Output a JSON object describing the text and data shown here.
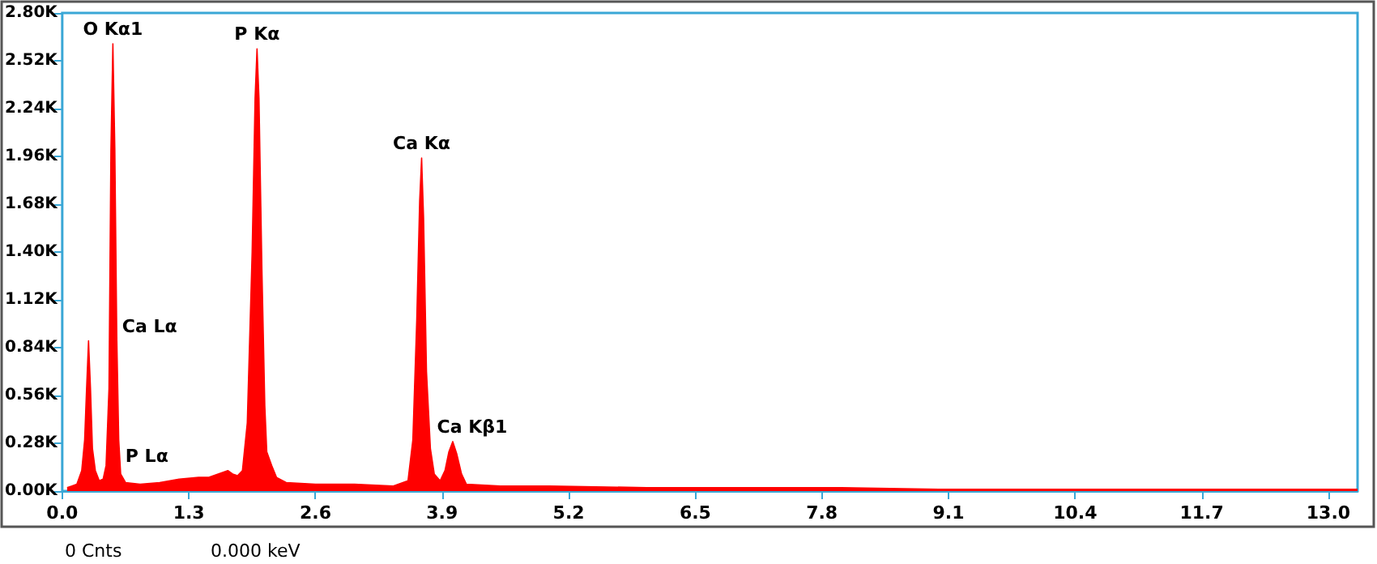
{
  "chart_data": {
    "type": "area",
    "series": [
      {
        "color": "#ff0000",
        "x": [
          0.05,
          0.1,
          0.15,
          0.2,
          0.23,
          0.25,
          0.27,
          0.29,
          0.31,
          0.34,
          0.38,
          0.42,
          0.45,
          0.48,
          0.5,
          0.52,
          0.54,
          0.56,
          0.58,
          0.6,
          0.65,
          0.8,
          1.0,
          1.2,
          1.4,
          1.5,
          1.6,
          1.7,
          1.75,
          1.8,
          1.85,
          1.9,
          1.95,
          1.98,
          2.0,
          2.02,
          2.05,
          2.08,
          2.1,
          2.15,
          2.2,
          2.3,
          2.6,
          3.0,
          3.4,
          3.55,
          3.6,
          3.64,
          3.67,
          3.69,
          3.71,
          3.74,
          3.78,
          3.82,
          3.88,
          3.93,
          3.97,
          4.01,
          4.05,
          4.1,
          4.15,
          4.5,
          5.0,
          6.0,
          7.0,
          8.0,
          9.0,
          10.0,
          11.0,
          12.0,
          13.0,
          13.3
        ],
        "values": [
          20,
          30,
          40,
          120,
          300,
          600,
          880,
          600,
          250,
          120,
          60,
          70,
          150,
          600,
          2000,
          2620,
          2000,
          900,
          300,
          100,
          50,
          40,
          50,
          70,
          80,
          80,
          100,
          120,
          100,
          90,
          120,
          400,
          1400,
          2300,
          2590,
          2300,
          1300,
          500,
          230,
          150,
          80,
          50,
          40,
          40,
          30,
          60,
          300,
          1000,
          1700,
          1950,
          1600,
          700,
          250,
          100,
          60,
          120,
          230,
          290,
          220,
          100,
          40,
          30,
          30,
          20,
          20,
          20,
          10,
          10,
          10,
          10,
          10,
          10
        ]
      }
    ],
    "xlim": [
      0,
      13.3
    ],
    "xticks": [
      {
        "value": 0,
        "label": "0.0"
      },
      1.3,
      2.6,
      3.9,
      5.2,
      6.5,
      7.8,
      9.1,
      10.4,
      11.7,
      {
        "value": 13,
        "label": "13.0"
      }
    ],
    "ylim": [
      0,
      2800
    ],
    "yticks": [
      {
        "value": 0,
        "label": "0.00K"
      },
      {
        "value": 280,
        "label": "0.28K"
      },
      {
        "value": 560,
        "label": "0.56K"
      },
      {
        "value": 840,
        "label": "0.84K"
      },
      {
        "value": 1120,
        "label": "1.12K"
      },
      {
        "value": 1400,
        "label": "1.40K"
      },
      {
        "value": 1680,
        "label": "1.68K"
      },
      {
        "value": 1960,
        "label": "1.96K"
      },
      {
        "value": 2240,
        "label": "2.24K"
      },
      {
        "value": 2520,
        "label": "2.52K"
      },
      {
        "value": 2800,
        "label": "2.80K"
      }
    ],
    "grid": false,
    "marker": "none",
    "annotations": [
      {
        "text": "O Kα1",
        "x": 0.52,
        "y": 2620
      },
      {
        "text": "P Kα",
        "x": 2.0,
        "y": 2590
      },
      {
        "text": "Ca Kα",
        "x": 3.69,
        "y": 1950
      },
      {
        "text": "Ca Kβ1",
        "x": 4.01,
        "y": 290
      },
      {
        "text": "Ca Lα",
        "x": 0.27,
        "y": 880
      },
      {
        "text": "P Lα",
        "x": 0.2,
        "y": 120
      },
      "0 Cnts",
      "0.000 keV"
    ]
  }
}
